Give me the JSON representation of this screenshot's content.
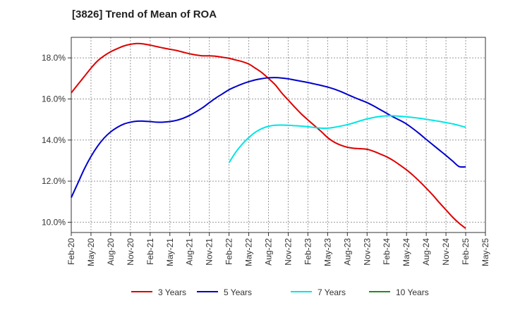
{
  "chart_data": {
    "type": "line",
    "title": "[3826]  Trend of Mean of ROA",
    "xlabel": "",
    "ylabel": "",
    "x_tick_labels": [
      "Feb-20",
      "May-20",
      "Aug-20",
      "Nov-20",
      "Feb-21",
      "May-21",
      "Aug-21",
      "Nov-21",
      "Feb-22",
      "May-22",
      "Aug-22",
      "Nov-22",
      "Feb-23",
      "May-23",
      "Aug-23",
      "Nov-23",
      "Feb-24",
      "May-24",
      "Aug-24",
      "Nov-24",
      "Feb-25",
      "May-25"
    ],
    "y_tick_labels": [
      "10.0%",
      "12.0%",
      "14.0%",
      "16.0%",
      "18.0%"
    ],
    "y_ticks": [
      10,
      12,
      14,
      16,
      18
    ],
    "ylim": [
      9.5,
      19.0
    ],
    "grid": true,
    "legend_position": "bottom",
    "series": [
      {
        "name": "3 Years",
        "color": "#dd0000",
        "x": [
          "Feb-20",
          "Mar-20",
          "Apr-20",
          "May-20",
          "Jun-20",
          "Jul-20",
          "Aug-20",
          "Sep-20",
          "Oct-20",
          "Nov-20",
          "Dec-20",
          "Jan-21",
          "Feb-21",
          "Mar-21",
          "Apr-21",
          "May-21",
          "Jun-21",
          "Jul-21",
          "Aug-21",
          "Sep-21",
          "Oct-21",
          "Nov-21",
          "Dec-21",
          "Jan-22",
          "Feb-22",
          "Mar-22",
          "Apr-22",
          "May-22",
          "Jun-22",
          "Jul-22",
          "Aug-22",
          "Sep-22",
          "Oct-22",
          "Nov-22",
          "Dec-22",
          "Jan-23",
          "Feb-23",
          "Mar-23",
          "Apr-23",
          "May-23",
          "Jun-23",
          "Jul-23",
          "Aug-23",
          "Sep-23",
          "Oct-23",
          "Nov-23",
          "Dec-23",
          "Jan-24",
          "Feb-24",
          "Mar-24",
          "Apr-24",
          "May-24",
          "Jun-24",
          "Jul-24",
          "Aug-24",
          "Sep-24",
          "Oct-24",
          "Nov-24",
          "Dec-24",
          "Jan-25",
          "Feb-25"
        ],
        "values": [
          16.3,
          16.7,
          17.1,
          17.5,
          17.85,
          18.1,
          18.3,
          18.45,
          18.58,
          18.66,
          18.7,
          18.68,
          18.62,
          18.55,
          18.48,
          18.42,
          18.36,
          18.28,
          18.2,
          18.14,
          18.1,
          18.1,
          18.08,
          18.03,
          17.98,
          17.9,
          17.82,
          17.7,
          17.5,
          17.28,
          17.0,
          16.7,
          16.3,
          15.95,
          15.6,
          15.27,
          14.98,
          14.7,
          14.42,
          14.12,
          13.9,
          13.75,
          13.65,
          13.6,
          13.58,
          13.55,
          13.45,
          13.32,
          13.18,
          13.0,
          12.78,
          12.55,
          12.28,
          11.98,
          11.66,
          11.32,
          10.95,
          10.6,
          10.25,
          9.95,
          9.7
        ]
      },
      {
        "name": "5 Years",
        "color": "#0000cc",
        "x": [
          "Feb-20",
          "Mar-20",
          "Apr-20",
          "May-20",
          "Jun-20",
          "Jul-20",
          "Aug-20",
          "Sep-20",
          "Oct-20",
          "Nov-20",
          "Dec-20",
          "Jan-21",
          "Feb-21",
          "Mar-21",
          "Apr-21",
          "May-21",
          "Jun-21",
          "Jul-21",
          "Aug-21",
          "Sep-21",
          "Oct-21",
          "Nov-21",
          "Dec-21",
          "Jan-22",
          "Feb-22",
          "Mar-22",
          "Apr-22",
          "May-22",
          "Jun-22",
          "Jul-22",
          "Aug-22",
          "Sep-22",
          "Oct-22",
          "Nov-22",
          "Dec-22",
          "Jan-23",
          "Feb-23",
          "Mar-23",
          "Apr-23",
          "May-23",
          "Jun-23",
          "Jul-23",
          "Aug-23",
          "Sep-23",
          "Oct-23",
          "Nov-23",
          "Dec-23",
          "Jan-24",
          "Feb-24",
          "Mar-24",
          "Apr-24",
          "May-24",
          "Jun-24",
          "Jul-24",
          "Aug-24",
          "Sep-24",
          "Oct-24",
          "Nov-24",
          "Dec-24",
          "Jan-25",
          "Feb-25"
        ],
        "values": [
          11.2,
          11.9,
          12.6,
          13.2,
          13.7,
          14.1,
          14.4,
          14.62,
          14.78,
          14.87,
          14.92,
          14.92,
          14.9,
          14.87,
          14.87,
          14.9,
          14.96,
          15.06,
          15.2,
          15.38,
          15.58,
          15.82,
          16.05,
          16.25,
          16.45,
          16.6,
          16.73,
          16.84,
          16.93,
          16.99,
          17.03,
          17.04,
          17.02,
          16.98,
          16.92,
          16.86,
          16.8,
          16.73,
          16.66,
          16.58,
          16.48,
          16.36,
          16.22,
          16.08,
          15.95,
          15.82,
          15.66,
          15.48,
          15.3,
          15.12,
          14.96,
          14.78,
          14.55,
          14.3,
          14.03,
          13.77,
          13.51,
          13.25,
          12.98,
          12.71,
          12.7
        ]
      },
      {
        "name": "7 Years",
        "color": "#00e5e5",
        "x": [
          "Feb-22",
          "Mar-22",
          "Apr-22",
          "May-22",
          "Jun-22",
          "Jul-22",
          "Aug-22",
          "Sep-22",
          "Oct-22",
          "Nov-22",
          "Dec-22",
          "Jan-23",
          "Feb-23",
          "Mar-23",
          "Apr-23",
          "May-23",
          "Jun-23",
          "Jul-23",
          "Aug-23",
          "Sep-23",
          "Oct-23",
          "Nov-23",
          "Dec-23",
          "Jan-24",
          "Feb-24",
          "Mar-24",
          "Apr-24",
          "May-24",
          "Jun-24",
          "Jul-24",
          "Aug-24",
          "Sep-24",
          "Oct-24",
          "Nov-24",
          "Dec-24",
          "Jan-25",
          "Feb-25"
        ],
        "values": [
          12.9,
          13.4,
          13.8,
          14.12,
          14.38,
          14.56,
          14.67,
          14.72,
          14.73,
          14.72,
          14.7,
          14.68,
          14.65,
          14.61,
          14.58,
          14.58,
          14.62,
          14.68,
          14.75,
          14.84,
          14.94,
          15.03,
          15.1,
          15.15,
          15.18,
          15.18,
          15.16,
          15.13,
          15.1,
          15.06,
          15.01,
          14.96,
          14.91,
          14.85,
          14.79,
          14.71,
          14.62
        ]
      },
      {
        "name": "10 Years",
        "color": "#228b22",
        "x": [],
        "values": []
      }
    ]
  }
}
